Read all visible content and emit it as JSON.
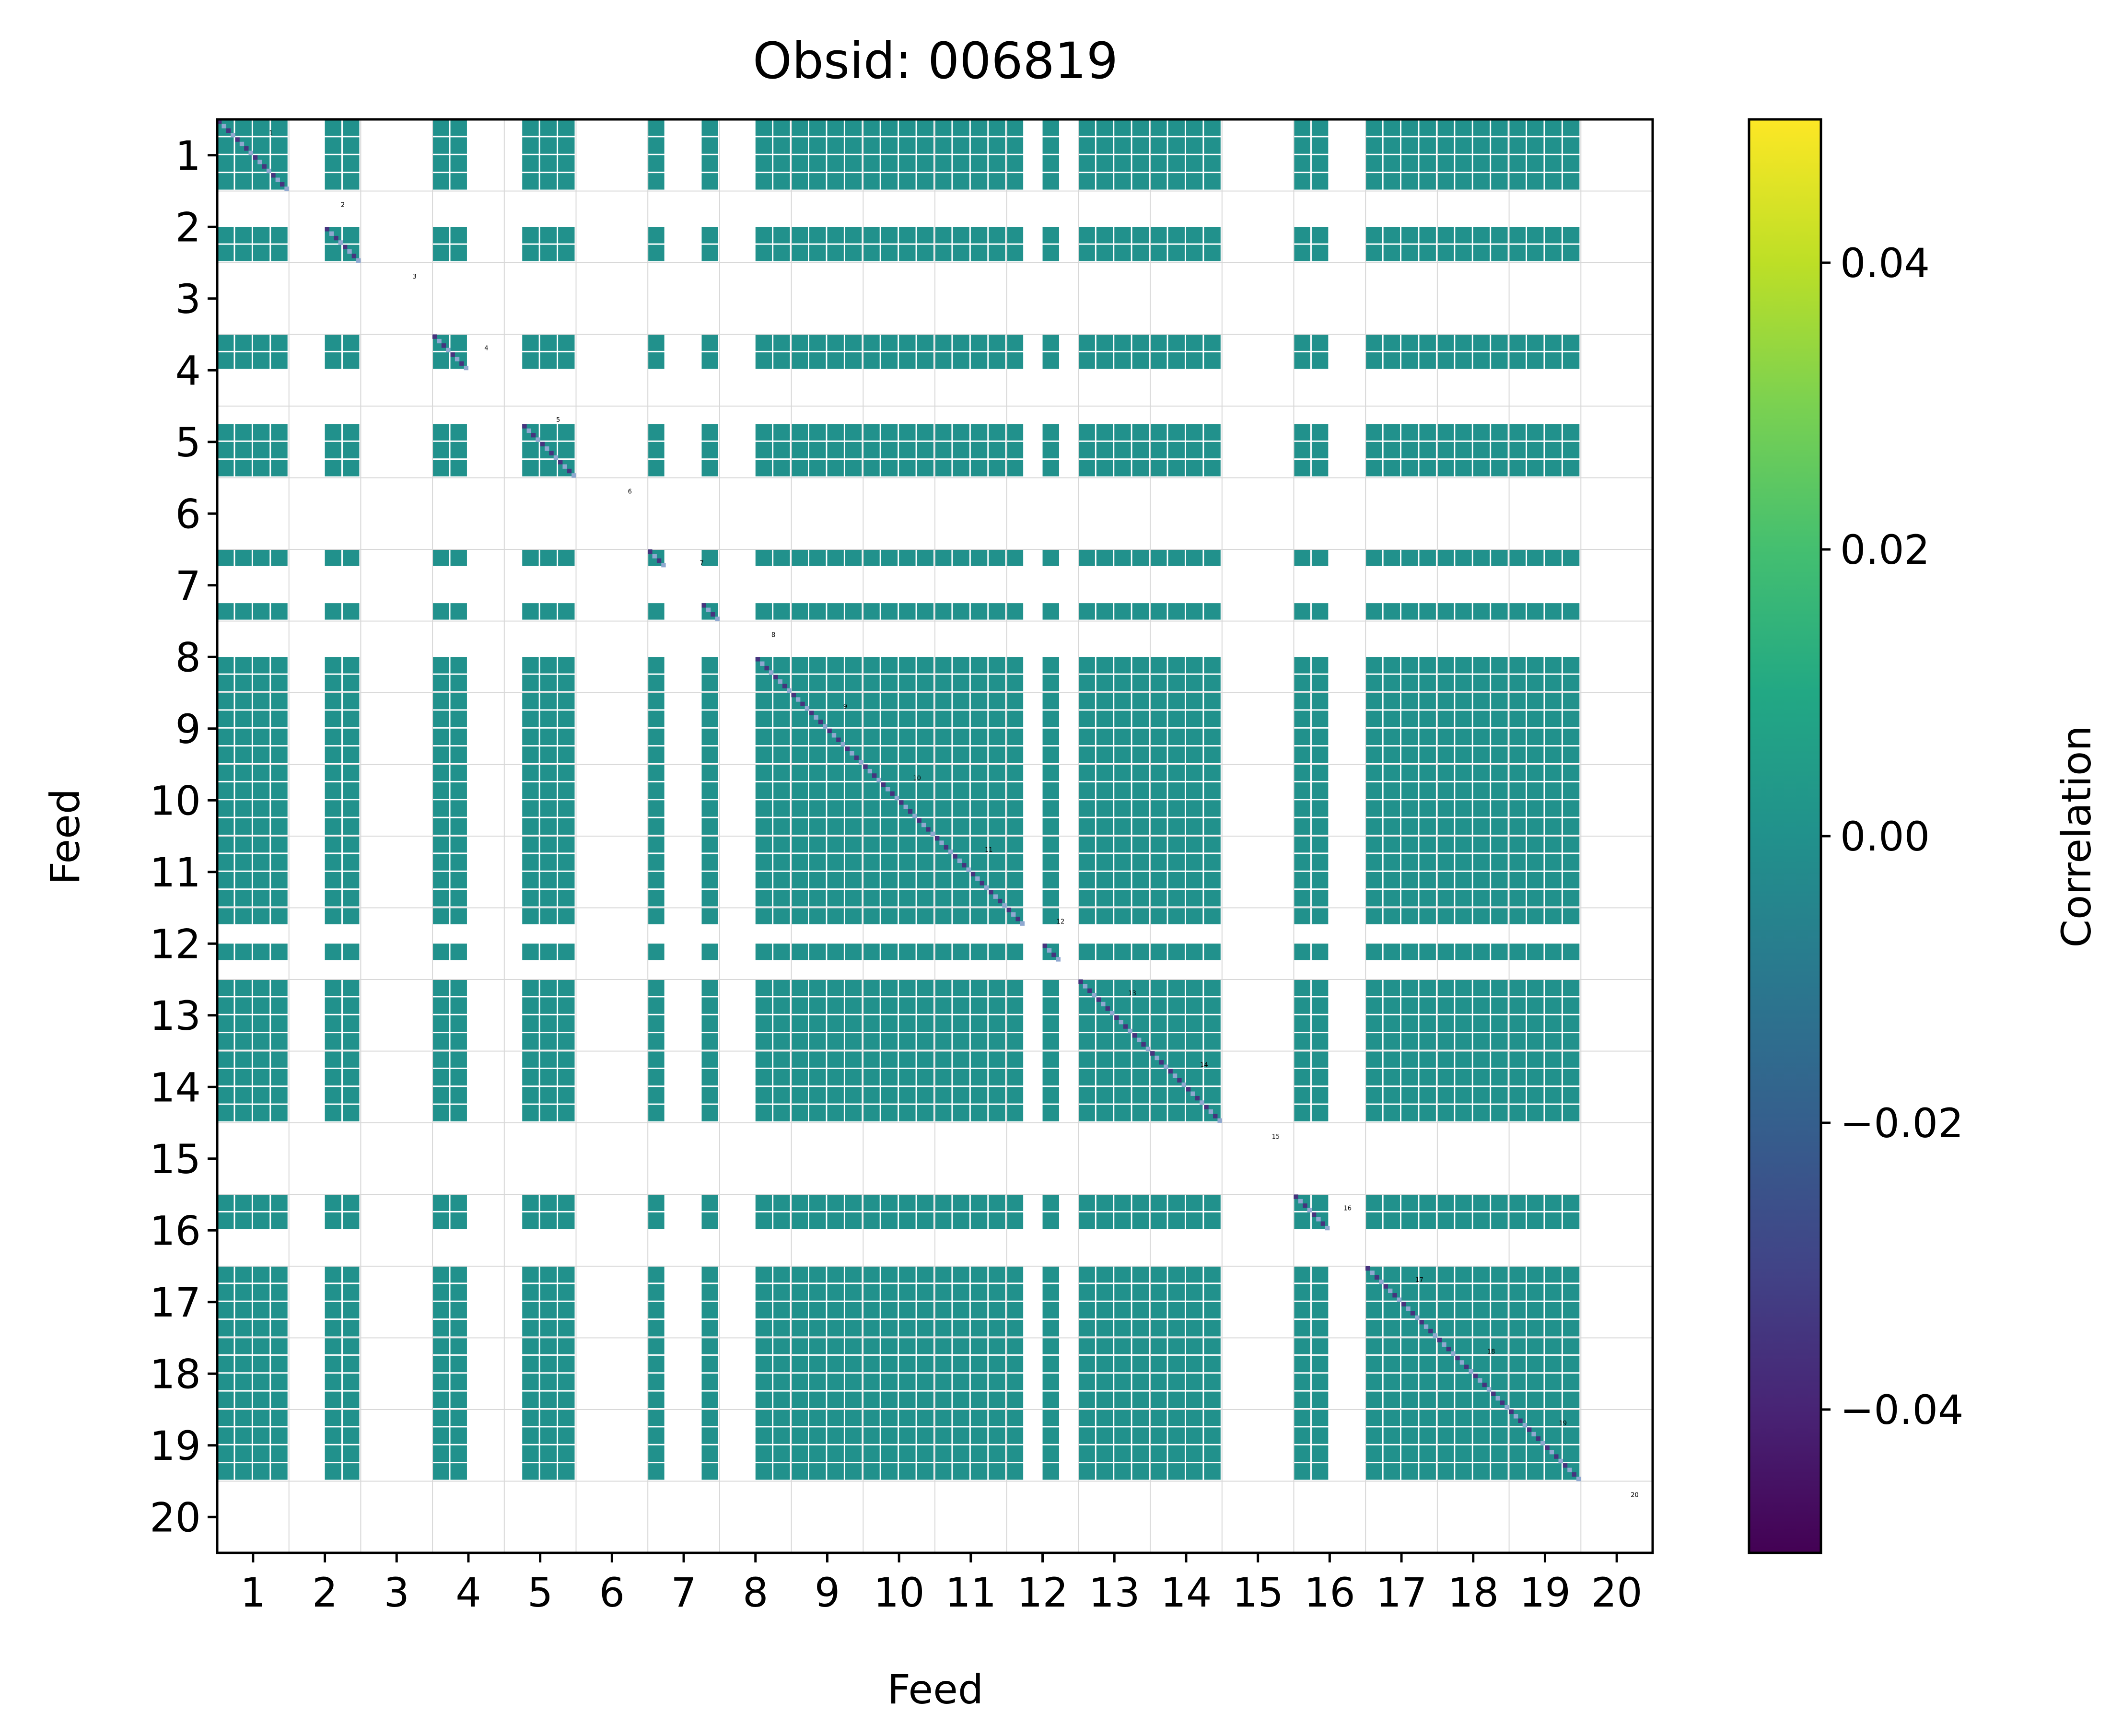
{
  "chart_data": {
    "type": "heatmap",
    "title": "Obsid: 006819",
    "xlabel": "Feed",
    "ylabel": "Feed",
    "colorbar_label": "Correlation",
    "colormap": "viridis",
    "vmin": -0.05,
    "vmax": 0.05,
    "colorbar_ticks": [
      "0.04",
      "0.02",
      "0.00",
      "−0.02",
      "−0.04"
    ],
    "colorbar_tick_values": [
      0.04,
      0.02,
      0.0,
      -0.02,
      -0.04
    ],
    "feeds": [
      "1",
      "2",
      "3",
      "4",
      "5",
      "6",
      "7",
      "8",
      "9",
      "10",
      "11",
      "12",
      "13",
      "14",
      "15",
      "16",
      "17",
      "18",
      "19",
      "20"
    ],
    "feed_labels": [
      "1",
      "2",
      "3",
      "4",
      "5",
      "6",
      "7",
      "8",
      "9",
      "10",
      "11",
      "12",
      "13",
      "14",
      "15",
      "16",
      "17",
      "18",
      "19",
      "20"
    ],
    "sub_blocks_per_feed": 4,
    "active_sub_blocks": [
      [
        0,
        1,
        2,
        3
      ],
      [
        2,
        3
      ],
      [],
      [
        0,
        1
      ],
      [
        1,
        2,
        3
      ],
      [],
      [
        0,
        3
      ],
      [
        2,
        3
      ],
      [
        0,
        1,
        2,
        3
      ],
      [
        0,
        1,
        2,
        3
      ],
      [
        0,
        1,
        2,
        3
      ],
      [
        0,
        2
      ],
      [
        0,
        1,
        2,
        3
      ],
      [
        0,
        1,
        2,
        3
      ],
      [],
      [
        0,
        1
      ],
      [
        0,
        1,
        2,
        3
      ],
      [
        0,
        1,
        2,
        3
      ],
      [
        0,
        1,
        2,
        3
      ],
      []
    ],
    "offdiagonal_value": 0.0,
    "diagonal_value": -0.04,
    "colors": {
      "block": "#21918c",
      "diagonal_dark": "#46337e",
      "diagonal_light": "#8fa8d0",
      "grid": "#d8d8d8"
    }
  }
}
